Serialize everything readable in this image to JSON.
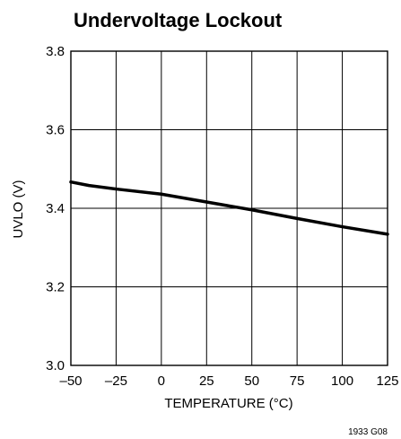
{
  "chart_data": {
    "type": "line",
    "title": "Undervoltage Lockout",
    "xlabel": "TEMPERATURE (°C)",
    "ylabel": "UVLO (V)",
    "xlim": [
      -50,
      125
    ],
    "ylim": [
      3.0,
      3.8
    ],
    "x_ticks": [
      -50,
      -25,
      0,
      25,
      50,
      75,
      100,
      125
    ],
    "x_tick_labels": [
      "–50",
      "–25",
      "0",
      "25",
      "50",
      "75",
      "100",
      "125"
    ],
    "y_ticks": [
      3.0,
      3.2,
      3.4,
      3.6,
      3.8
    ],
    "y_tick_labels": [
      "3.0",
      "3.2",
      "3.4",
      "3.6",
      "3.8"
    ],
    "grid": true,
    "series": [
      {
        "x": [
          -50,
          -40,
          -25,
          0,
          25,
          50,
          75,
          100,
          125
        ],
        "y": [
          3.467,
          3.458,
          3.449,
          3.436,
          3.416,
          3.396,
          3.374,
          3.353,
          3.334
        ]
      }
    ]
  },
  "footnote": "1933 G08"
}
